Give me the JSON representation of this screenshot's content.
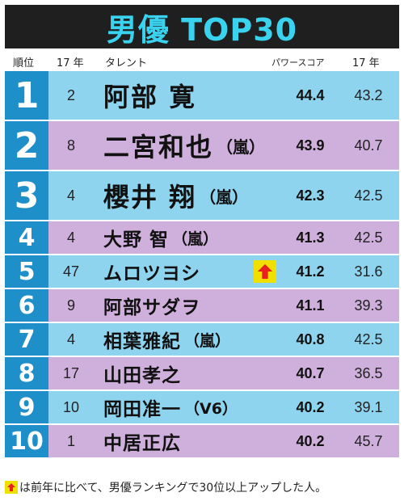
{
  "title": "男優 TOP30",
  "headers": {
    "rank": "順位",
    "prev_year": "17 年",
    "talent": "タレント",
    "power_score": "パワースコア",
    "prev_score": "17 年"
  },
  "rows": [
    {
      "rank": "1",
      "prev": "2",
      "name": "阿部 寛",
      "group": "",
      "score": "44.4",
      "prev_score": "43.2",
      "up": false
    },
    {
      "rank": "2",
      "prev": "8",
      "name": "二宮和也",
      "group": "（嵐）",
      "score": "43.9",
      "prev_score": "40.7",
      "up": false
    },
    {
      "rank": "3",
      "prev": "4",
      "name": "櫻井 翔",
      "group": "（嵐）",
      "score": "42.3",
      "prev_score": "42.5",
      "up": false
    },
    {
      "rank": "4",
      "prev": "4",
      "name": "大野 智",
      "group": "（嵐）",
      "score": "41.3",
      "prev_score": "42.5",
      "up": false
    },
    {
      "rank": "5",
      "prev": "47",
      "name": "ムロツヨシ",
      "group": "",
      "score": "41.2",
      "prev_score": "31.6",
      "up": true
    },
    {
      "rank": "6",
      "prev": "9",
      "name": "阿部サダヲ",
      "group": "",
      "score": "41.1",
      "prev_score": "39.3",
      "up": false
    },
    {
      "rank": "7",
      "prev": "4",
      "name": "相葉雅紀",
      "group": "（嵐）",
      "score": "40.8",
      "prev_score": "42.5",
      "up": false
    },
    {
      "rank": "8",
      "prev": "17",
      "name": "山田孝之",
      "group": "",
      "score": "40.7",
      "prev_score": "36.5",
      "up": false
    },
    {
      "rank": "9",
      "prev": "10",
      "name": "岡田准一",
      "group": "（V6）",
      "score": "40.2",
      "prev_score": "39.1",
      "up": false
    },
    {
      "rank": "10",
      "prev": "1",
      "name": "中居正広",
      "group": "",
      "score": "40.2",
      "prev_score": "45.7",
      "up": false
    }
  ],
  "footnote": "は前年に比べて、男優ランキングで30位以上アップした人。",
  "colors": {
    "title_bg": "#1f1f1f",
    "title_text": "#39d3f0",
    "rank_box": "#1f8fc9",
    "row_blue": "#8fd4ee",
    "row_purple": "#cfb0dc",
    "up_arrow_bg": "#f0e000",
    "up_arrow": "#e8201e"
  },
  "icons": {
    "up": "up-arrow-icon"
  }
}
